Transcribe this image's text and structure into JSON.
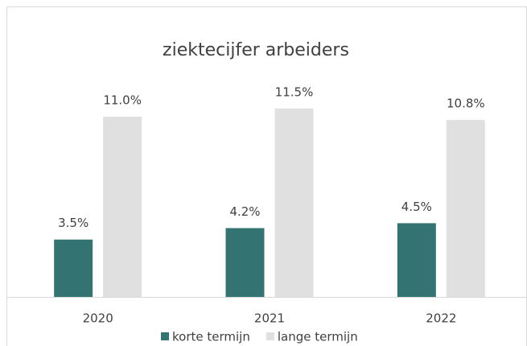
{
  "chart_data": {
    "type": "bar",
    "title": "ziektecijfer arbeiders",
    "categories": [
      "2020",
      "2021",
      "2022"
    ],
    "series": [
      {
        "name": "korte termijn",
        "color": "#337371",
        "values": [
          3.5,
          4.2,
          4.5
        ],
        "value_labels": [
          "3.5%",
          "4.2%",
          "4.5%"
        ]
      },
      {
        "name": "lange termijn",
        "color": "#e0e0e0",
        "values": [
          11.0,
          11.5,
          10.8
        ],
        "value_labels": [
          "11.0%",
          "11.5%",
          "10.8%"
        ]
      }
    ],
    "legend": "bottom"
  }
}
